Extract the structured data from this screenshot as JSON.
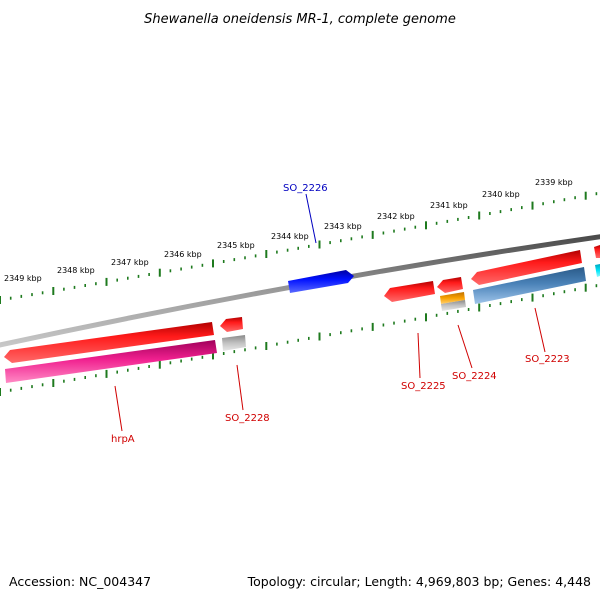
{
  "title": "Shewanella oneidensis MR-1, complete genome",
  "accession": "Accession: NC_004347",
  "summary": "Topology: circular; Length: 4,969,803 bp; Genes: 4,448",
  "colors": {
    "backbone": "#7a7a7a",
    "ticks": "#1e7a1e",
    "label_red": "#d00000",
    "label_blue": "#0000c0"
  },
  "scale_labels": [
    "2349 kbp",
    "2348 kbp",
    "2347 kbp",
    "2346 kbp",
    "2345 kbp",
    "2344 kbp",
    "2343 kbp",
    "2342 kbp",
    "2341 kbp",
    "2340 kbp",
    "2339 kbp"
  ],
  "gene_labels": [
    {
      "name": "SO_2226",
      "color": "#0000c0"
    },
    {
      "name": "SO_2225",
      "color": "#d00000"
    },
    {
      "name": "SO_2224",
      "color": "#d00000"
    },
    {
      "name": "SO_2223",
      "color": "#d00000"
    },
    {
      "name": "SO_2228",
      "color": "#d00000"
    },
    {
      "name": "hrpA",
      "color": "#d00000"
    }
  ],
  "feature_colors": {
    "gene": "#ff0000",
    "cds_blue": "#0000ee",
    "cds_magenta": "#ee1f8f",
    "cds_steel": "#4a7fb0",
    "orange": "#f5a000",
    "grey": "#b8b8b8",
    "cyan": "#00e0f0"
  }
}
